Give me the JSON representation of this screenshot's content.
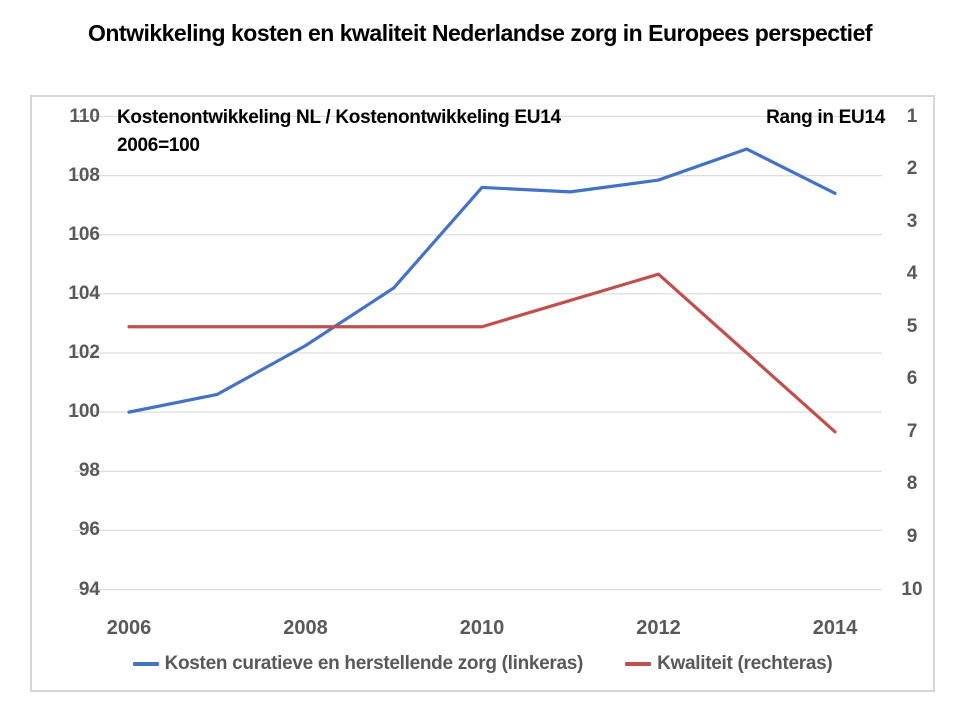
{
  "page_title": "Ontwikkeling kosten en kwaliteit Nederlandse zorg in Europees perspectief",
  "colors": {
    "series_blue": "#4472C4",
    "series_red": "#C0504D",
    "tick_text": "#595959",
    "gridline": "#DCDCDC",
    "panel_border": "#D6D6D6",
    "title_text": "#000000"
  },
  "chart_data": {
    "type": "line",
    "title": "Ontwikkeling kosten en kwaliteit Nederlandse zorg in Europees perspectief",
    "x": [
      2006,
      2007,
      2008,
      2009,
      2010,
      2011,
      2012,
      2013,
      2014
    ],
    "x_tick_labels": [
      "2006",
      "2008",
      "2010",
      "2012",
      "2014"
    ],
    "grid": true,
    "legend_position": "bottom",
    "left_axis": {
      "label_line1": "Kostenontwikkeling NL / Kostenontwikkeling EU14",
      "label_line2": "2006=100",
      "min": 94,
      "max": 110,
      "ticks": [
        110,
        108,
        106,
        104,
        102,
        100,
        98,
        96,
        94
      ]
    },
    "right_axis": {
      "label": "Rang in EU14",
      "min": 1,
      "max": 10,
      "inverted": true,
      "ticks": [
        1,
        2,
        3,
        4,
        5,
        6,
        7,
        8,
        9,
        10
      ]
    },
    "series": [
      {
        "name": "Kosten curatieve en herstellende zorg (linkeras)",
        "axis": "left",
        "color": "#4472C4",
        "values": [
          100.0,
          100.6,
          102.25,
          104.2,
          107.6,
          107.45,
          107.85,
          108.9,
          107.4
        ]
      },
      {
        "name": "Kwaliteit (rechteras)",
        "axis": "right",
        "color": "#C0504D",
        "values": [
          5,
          5,
          5,
          5,
          5,
          4.5,
          4,
          5.5,
          7
        ]
      }
    ]
  }
}
